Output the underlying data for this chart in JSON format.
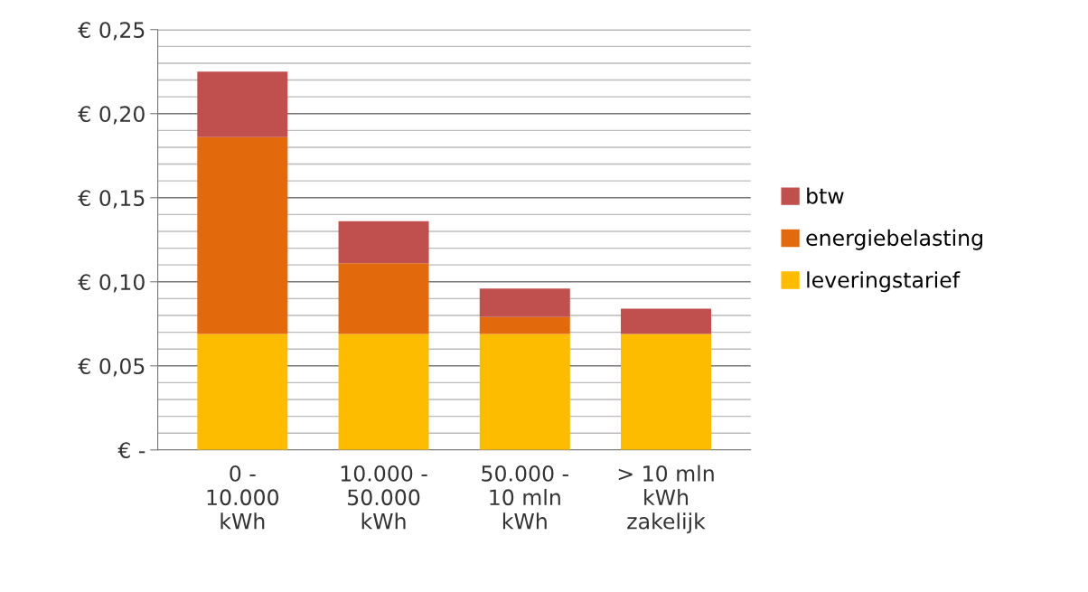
{
  "chart_data": {
    "type": "bar",
    "stacked": true,
    "categories": [
      "0 -\n10.000\nkWh",
      "10.000 -\n50.000\nkWh",
      "50.000 -\n10 mln\nkWh",
      "> 10 mln\nkWh\nzakelijk"
    ],
    "series": [
      {
        "name": "leveringstarief",
        "color": "#fdbc00",
        "values": [
          0.069,
          0.069,
          0.069,
          0.069
        ]
      },
      {
        "name": "energiebelasting",
        "color": "#e2690c",
        "values": [
          0.117,
          0.042,
          0.01,
          0
        ]
      },
      {
        "name": "btw",
        "color": "#c0504d",
        "values": [
          0.039,
          0.025,
          0.017,
          0.015
        ]
      }
    ],
    "ylim": [
      0,
      0.25
    ],
    "yticks": [
      {
        "value": 0,
        "label": "€ -"
      },
      {
        "value": 0.05,
        "label": "€ 0,05"
      },
      {
        "value": 0.1,
        "label": "€ 0,10"
      },
      {
        "value": 0.15,
        "label": "€ 0,15"
      },
      {
        "value": 0.2,
        "label": "€ 0,20"
      },
      {
        "value": 0.25,
        "label": "€ 0,25"
      }
    ],
    "grid": "y",
    "legend": "right"
  }
}
